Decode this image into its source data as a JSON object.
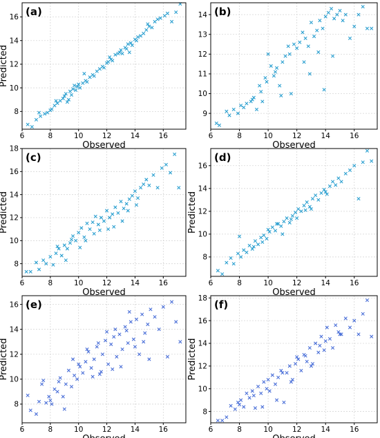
{
  "figure": {
    "panels_count": 6,
    "layout": "3 rows x 2 columns"
  },
  "chart_data": [
    {
      "type": "scatter",
      "panel_label": "(a)",
      "xlabel": "Observed",
      "ylabel": "Predicted",
      "xlim": [
        6.0,
        17.6
      ],
      "ylim": [
        6.5,
        17.2
      ],
      "xticks": [
        6,
        8,
        10,
        12,
        14,
        16
      ],
      "yticks": [
        8,
        10,
        12,
        14,
        16
      ],
      "grid": true,
      "marker": "x",
      "color": "#2a9fd0",
      "x": [
        6.4,
        6.7,
        7.0,
        7.2,
        7.3,
        7.6,
        7.8,
        8.0,
        8.1,
        8.3,
        8.5,
        8.7,
        8.9,
        9.0,
        9.1,
        9.3,
        9.4,
        9.5,
        9.6,
        9.7,
        9.8,
        9.9,
        10.0,
        10.1,
        10.3,
        10.5,
        10.6,
        10.8,
        11.0,
        11.1,
        11.3,
        11.5,
        11.7,
        11.8,
        12.0,
        12.1,
        12.3,
        12.4,
        12.6,
        12.8,
        12.9,
        13.0,
        13.1,
        13.3,
        13.4,
        13.5,
        13.7,
        13.8,
        14.0,
        14.1,
        14.2,
        14.4,
        14.6,
        14.8,
        15.0,
        15.2,
        15.4,
        15.6,
        15.8,
        16.1,
        16.3,
        16.6,
        16.9,
        17.2,
        9.2,
        10.4,
        12.2,
        13.6,
        14.9,
        8.4
      ],
      "y": [
        6.9,
        6.7,
        7.3,
        7.9,
        7.6,
        7.8,
        7.9,
        8.1,
        8.2,
        8.5,
        8.7,
        8.9,
        9.1,
        9.3,
        9.5,
        9.0,
        9.7,
        9.4,
        9.9,
        10.2,
        9.8,
        10.1,
        10.3,
        10.0,
        10.4,
        10.6,
        10.5,
        10.9,
        11.1,
        11.0,
        11.4,
        11.6,
        11.8,
        11.7,
        12.1,
        12.2,
        12.4,
        12.3,
        12.8,
        12.9,
        13.0,
        13.2,
        12.9,
        13.4,
        13.3,
        13.7,
        13.8,
        13.6,
        14.1,
        14.0,
        14.3,
        14.4,
        14.6,
        14.9,
        15.2,
        15.1,
        15.6,
        15.8,
        15.9,
        16.1,
        16.3,
        15.6,
        16.4,
        17.1,
        8.8,
        11.2,
        12.6,
        13.0,
        15.4,
        8.9
      ]
    },
    {
      "type": "scatter",
      "panel_label": "(b)",
      "xlabel": "Observed",
      "ylabel": "",
      "xlim": [
        6.0,
        17.6
      ],
      "ylim": [
        8.2,
        14.6
      ],
      "xticks": [
        6,
        8,
        10,
        12,
        14,
        16
      ],
      "yticks": [
        9,
        10,
        11,
        12,
        13,
        14
      ],
      "grid": true,
      "marker": "x",
      "color": "#2a9fd0",
      "x": [
        6.4,
        6.6,
        7.1,
        7.3,
        7.6,
        7.9,
        8.1,
        8.3,
        8.5,
        8.8,
        9.0,
        9.2,
        9.4,
        9.6,
        9.8,
        10.0,
        10.2,
        10.4,
        10.6,
        10.8,
        11.0,
        11.2,
        11.4,
        11.6,
        11.8,
        12.0,
        12.2,
        12.4,
        12.6,
        12.8,
        13.0,
        13.2,
        13.4,
        13.6,
        13.8,
        14.0,
        14.2,
        14.4,
        14.6,
        14.8,
        15.0,
        15.2,
        15.4,
        15.7,
        16.0,
        16.3,
        16.6,
        16.9,
        17.2,
        9.5,
        10.5,
        11.5,
        12.5,
        13.5,
        14.5,
        8.9,
        9.9,
        13.9,
        10.9,
        12.9
      ],
      "y": [
        8.5,
        8.4,
        9.1,
        8.9,
        9.2,
        9.0,
        9.4,
        9.3,
        9.5,
        9.6,
        9.8,
        9.2,
        10.4,
        9.6,
        10.8,
        12.0,
        11.4,
        10.9,
        11.3,
        10.4,
        11.6,
        11.9,
        12.4,
        10.0,
        12.5,
        12.3,
        12.6,
        13.1,
        12.8,
        12.4,
        13.6,
        12.9,
        13.2,
        13.7,
        13.3,
        13.9,
        14.1,
        14.3,
        13.8,
        14.0,
        14.2,
        13.7,
        14.0,
        12.8,
        13.4,
        14.0,
        14.4,
        13.3,
        13.3,
        10.1,
        11.1,
        12.0,
        11.6,
        12.1,
        11.9,
        9.7,
        10.6,
        10.2,
        9.9,
        11.0
      ]
    },
    {
      "type": "scatter",
      "panel_label": "(c)",
      "xlabel": "Observed",
      "ylabel": "Predicted",
      "xlim": [
        6.0,
        17.6
      ],
      "ylim": [
        6.9,
        18.0
      ],
      "xticks": [
        6,
        8,
        10,
        12,
        14,
        16
      ],
      "yticks": [
        8,
        10,
        12,
        14,
        16,
        18
      ],
      "grid": true,
      "marker": "x",
      "color": "#2a9fd0",
      "x": [
        6.3,
        6.6,
        7.0,
        7.2,
        7.5,
        7.7,
        8.0,
        8.2,
        8.4,
        8.6,
        8.8,
        9.0,
        9.2,
        9.4,
        9.6,
        9.8,
        10.0,
        10.2,
        10.4,
        10.6,
        10.8,
        11.0,
        11.2,
        11.4,
        11.6,
        11.8,
        12.0,
        12.2,
        12.4,
        12.6,
        12.8,
        13.0,
        13.2,
        13.4,
        13.6,
        13.8,
        14.0,
        14.2,
        14.4,
        14.6,
        14.8,
        15.0,
        15.3,
        15.6,
        15.9,
        16.2,
        16.5,
        16.8,
        17.1,
        9.1,
        10.1,
        11.1,
        12.1,
        13.1,
        14.1,
        8.5,
        9.5,
        10.5,
        11.5,
        12.5,
        13.5
      ],
      "y": [
        7.3,
        7.3,
        8.1,
        7.5,
        8.3,
        8.0,
        8.6,
        7.9,
        8.9,
        9.3,
        8.7,
        9.6,
        9.3,
        9.8,
        10.4,
        10.0,
        10.7,
        11.1,
        10.3,
        11.5,
        11.0,
        11.6,
        12.1,
        11.4,
        12.0,
        11.7,
        12.6,
        12.0,
        12.3,
        12.9,
        12.4,
        13.4,
        12.8,
        13.2,
        13.6,
        13.9,
        14.3,
        13.7,
        14.6,
        14.9,
        15.3,
        14.8,
        15.7,
        14.6,
        16.3,
        16.6,
        15.9,
        17.5,
        14.6,
        8.3,
        9.4,
        10.6,
        11.0,
        11.7,
        13.1,
        9.5,
        10.1,
        10.0,
        10.9,
        11.2,
        12.6
      ]
    },
    {
      "type": "scatter",
      "panel_label": "(d)",
      "xlabel": "Observed",
      "ylabel": "Predicted",
      "xlim": [
        6.0,
        17.6
      ],
      "ylim": [
        6.3,
        17.5
      ],
      "xticks": [
        6,
        8,
        10,
        12,
        14,
        16
      ],
      "yticks": [
        8,
        10,
        12,
        14,
        16
      ],
      "grid": true,
      "marker": "x",
      "color": "#2a9fd0",
      "x": [
        6.5,
        6.8,
        7.1,
        7.4,
        7.6,
        7.9,
        8.1,
        8.3,
        8.5,
        8.7,
        8.9,
        9.1,
        9.3,
        9.5,
        9.7,
        9.9,
        10.1,
        10.3,
        10.5,
        10.7,
        10.9,
        11.1,
        11.3,
        11.5,
        11.7,
        11.9,
        12.1,
        12.3,
        12.5,
        12.7,
        12.9,
        13.1,
        13.3,
        13.5,
        13.7,
        13.9,
        14.1,
        14.3,
        14.5,
        14.7,
        14.9,
        15.1,
        15.4,
        15.7,
        16.0,
        16.3,
        16.6,
        16.9,
        17.2,
        8.0,
        9.0,
        10.0,
        11.0,
        12.0,
        13.0,
        14.0,
        9.6,
        10.6,
        11.6,
        12.6
      ],
      "y": [
        6.8,
        6.5,
        7.5,
        7.9,
        7.4,
        8.3,
        8.0,
        8.6,
        8.4,
        9.0,
        8.7,
        9.4,
        9.1,
        9.7,
        9.9,
        9.6,
        10.2,
        10.6,
        10.3,
        10.9,
        10.7,
        11.1,
        11.4,
        11.0,
        11.6,
        11.9,
        12.2,
        12.0,
        12.5,
        12.8,
        12.4,
        13.1,
        13.4,
        13.0,
        13.6,
        13.9,
        13.5,
        14.2,
        14.6,
        14.3,
        14.9,
        14.6,
        15.3,
        15.6,
        16.0,
        13.1,
        16.3,
        17.3,
        16.4,
        9.8,
        8.9,
        10.4,
        10.0,
        11.4,
        12.2,
        13.7,
        9.3,
        10.9,
        11.3,
        12.1
      ]
    },
    {
      "type": "scatter",
      "panel_label": "(e)",
      "xlabel": "Observed",
      "ylabel": "Predicted",
      "xlim": [
        6.0,
        17.6
      ],
      "ylim": [
        6.5,
        16.7
      ],
      "xticks": [
        6,
        8,
        10,
        12,
        14,
        16
      ],
      "yticks": [
        8,
        10,
        12,
        14,
        16
      ],
      "grid": true,
      "marker": "x",
      "color": "#4a6fd8",
      "x": [
        6.4,
        6.6,
        7.0,
        7.2,
        7.4,
        7.7,
        7.9,
        8.1,
        8.3,
        8.5,
        8.7,
        8.9,
        9.1,
        9.3,
        9.5,
        9.7,
        9.9,
        10.1,
        10.3,
        10.5,
        10.7,
        10.9,
        11.1,
        11.3,
        11.5,
        11.7,
        11.9,
        12.1,
        12.3,
        12.5,
        12.7,
        12.9,
        13.1,
        13.3,
        13.5,
        13.7,
        13.9,
        14.1,
        14.3,
        14.5,
        14.7,
        14.9,
        15.1,
        15.4,
        15.7,
        16.0,
        16.3,
        16.6,
        16.9,
        17.2,
        8.6,
        9.6,
        10.6,
        11.6,
        12.6,
        13.6,
        14.6,
        9.0,
        10.0,
        11.0,
        12.0,
        13.0,
        14.0,
        15.0,
        7.5,
        8.0,
        11.4,
        12.4,
        13.4
      ],
      "y": [
        8.7,
        7.5,
        7.2,
        8.2,
        9.6,
        8.1,
        8.6,
        8.0,
        9.2,
        9.0,
        10.1,
        8.6,
        9.6,
        10.7,
        9.4,
        10.3,
        10.0,
        11.0,
        10.5,
        11.4,
        12.2,
        10.9,
        11.6,
        12.6,
        10.4,
        12.0,
        13.1,
        11.2,
        12.8,
        13.4,
        11.8,
        13.6,
        12.4,
        14.2,
        12.9,
        14.6,
        13.2,
        14.8,
        12.0,
        15.2,
        13.7,
        14.4,
        15.6,
        15.0,
        14.0,
        15.8,
        11.8,
        16.2,
        14.6,
        13.0,
        9.8,
        11.6,
        12.4,
        10.6,
        14.0,
        15.4,
        13.0,
        7.6,
        11.2,
        10.2,
        13.8,
        11.0,
        12.6,
        11.6,
        9.9,
        8.3,
        12.9,
        10.8,
        13.9
      ]
    },
    {
      "type": "scatter",
      "panel_label": "(f)",
      "xlabel": "Observed",
      "ylabel": "Predicted",
      "xlim": [
        6.0,
        17.6
      ],
      "ylim": [
        7.0,
        18.2
      ],
      "xticks": [
        6,
        8,
        10,
        12,
        14,
        16
      ],
      "yticks": [
        8,
        10,
        12,
        14,
        16,
        18
      ],
      "grid": true,
      "marker": "x",
      "color": "#4a6fd8",
      "x": [
        6.5,
        6.8,
        7.1,
        7.4,
        7.7,
        7.9,
        8.1,
        8.3,
        8.5,
        8.7,
        8.9,
        9.1,
        9.3,
        9.5,
        9.7,
        9.9,
        10.1,
        10.3,
        10.5,
        10.7,
        10.9,
        11.1,
        11.3,
        11.5,
        11.7,
        11.9,
        12.1,
        12.3,
        12.5,
        12.7,
        12.9,
        13.1,
        13.3,
        13.5,
        13.7,
        13.9,
        14.1,
        14.3,
        14.5,
        14.7,
        14.9,
        15.1,
        15.4,
        15.7,
        16.0,
        16.3,
        16.6,
        16.9,
        17.2,
        8.0,
        9.0,
        10.0,
        11.0,
        12.0,
        13.0,
        14.0,
        15.0,
        9.6,
        10.6,
        11.6,
        12.6,
        13.6
      ],
      "y": [
        7.2,
        7.2,
        7.5,
        8.5,
        8.2,
        8.8,
        9.0,
        8.4,
        9.6,
        9.2,
        9.8,
        8.3,
        10.2,
        9.6,
        10.6,
        10.0,
        9.8,
        11.2,
        10.4,
        11.0,
        11.6,
        8.8,
        11.4,
        12.0,
        10.8,
        12.2,
        12.6,
        11.6,
        13.0,
        12.4,
        13.6,
        12.2,
        14.0,
        13.2,
        14.6,
        13.4,
        15.4,
        14.4,
        13.6,
        15.6,
        15.0,
        14.8,
        16.2,
        15.4,
        16.0,
        14.8,
        16.6,
        17.8,
        14.6,
        8.6,
        9.4,
        10.8,
        11.4,
        12.8,
        12.0,
        14.2,
        14.8,
        8.4,
        9.0,
        10.6,
        12.9,
        13.8
      ]
    }
  ]
}
